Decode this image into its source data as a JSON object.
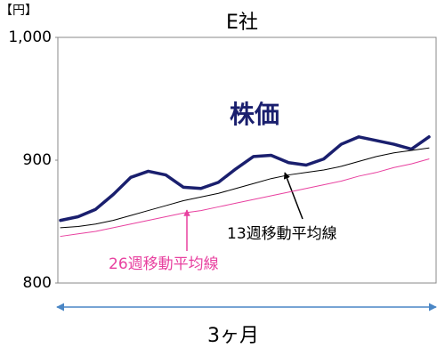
{
  "chart_data": {
    "type": "line",
    "title": "E社",
    "unit_label": "【円】",
    "x_label": "3ヶ月",
    "ylim": [
      800,
      1000
    ],
    "yticks": [
      800,
      900,
      {
        "value": 1000,
        "label": "1,000"
      }
    ],
    "grid": false,
    "series": [
      {
        "name": "株価",
        "color": "#1a1f6e",
        "values": [
          851,
          854,
          860,
          872,
          886,
          891,
          888,
          878,
          877,
          882,
          893,
          903,
          904,
          898,
          896,
          901,
          913,
          919,
          916,
          913,
          909,
          919
        ]
      },
      {
        "name": "13週移動平均線",
        "color": "#000000",
        "values": [
          845,
          846,
          848,
          851,
          855,
          859,
          863,
          867,
          870,
          873,
          877,
          881,
          885,
          888,
          890,
          892,
          895,
          899,
          903,
          906,
          908,
          910
        ]
      },
      {
        "name": "26週移動平均線",
        "color": "#e8409f",
        "values": [
          838,
          840,
          842,
          845,
          848,
          851,
          854,
          857,
          859,
          862,
          865,
          868,
          871,
          874,
          877,
          880,
          883,
          887,
          890,
          894,
          897,
          901
        ]
      }
    ]
  }
}
